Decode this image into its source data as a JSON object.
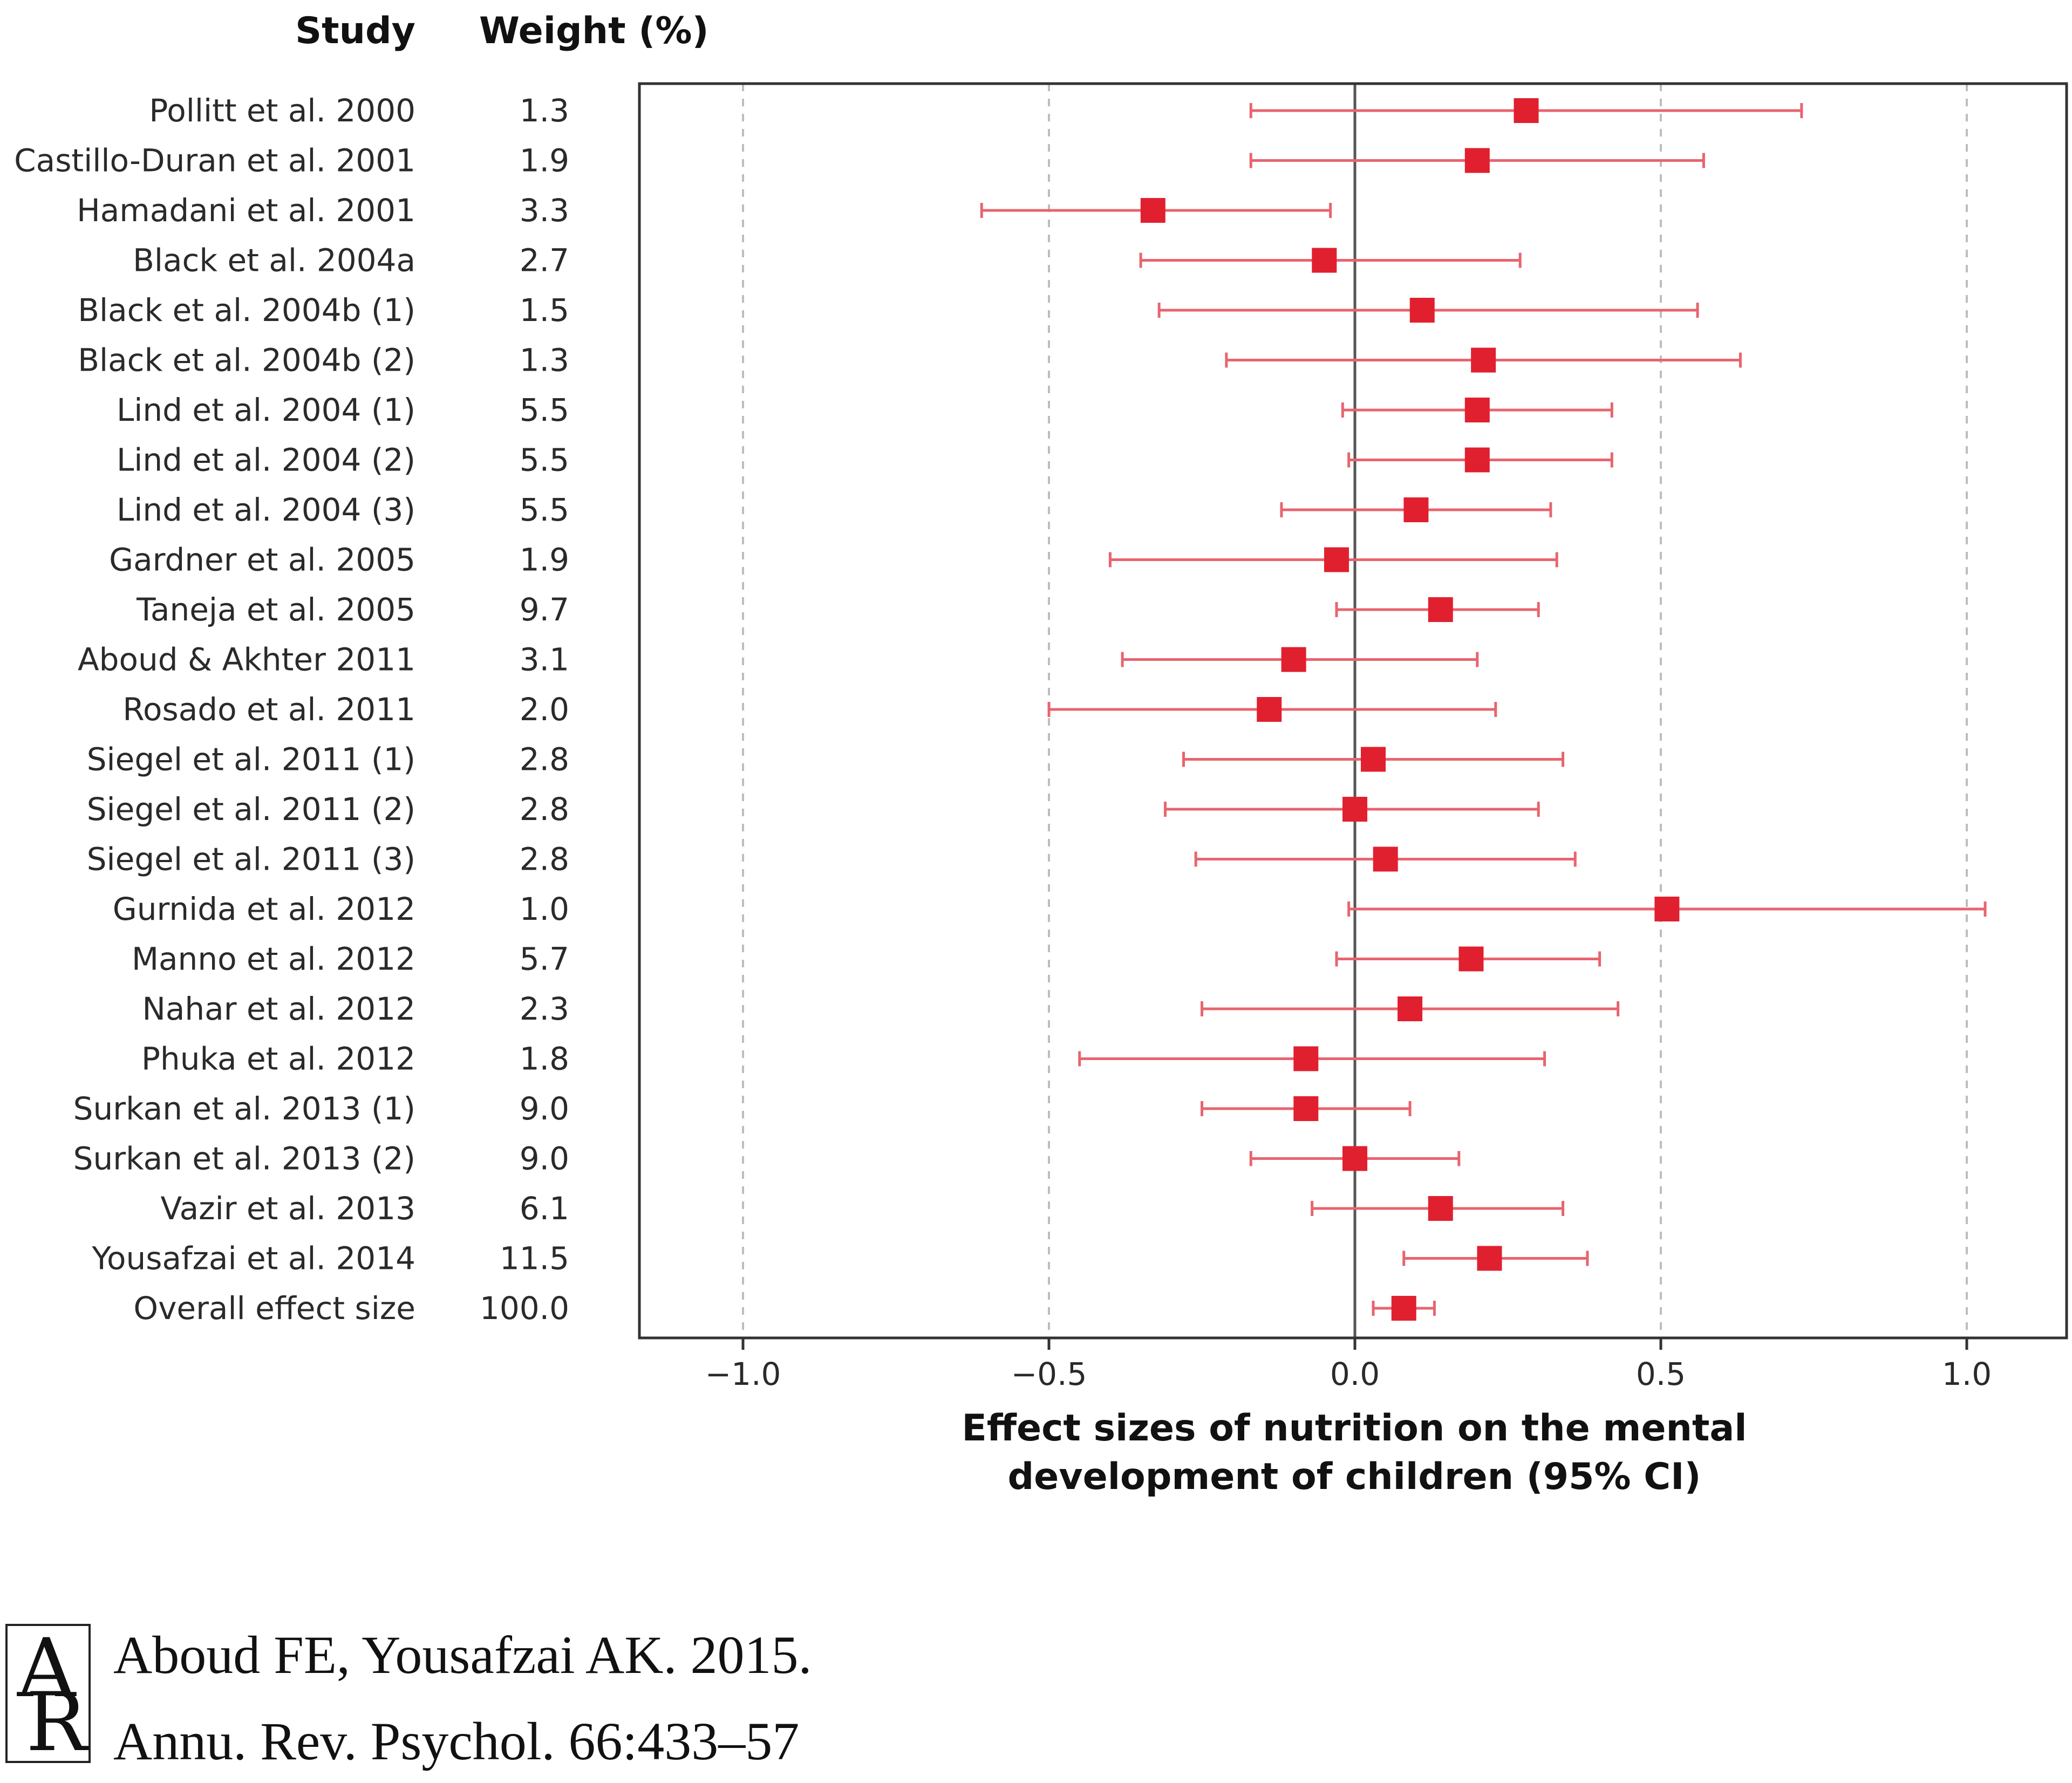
{
  "header": {
    "study_label": "Study",
    "weight_label": "Weight (%)"
  },
  "chart_data": {
    "type": "forest",
    "xlabel_lines": [
      "Effect sizes of nutrition on the mental",
      "development of children (95% CI)"
    ],
    "xlim": [
      -1.17,
      1.17
    ],
    "xticks": [
      -1.0,
      -0.5,
      0.0,
      0.5,
      1.0
    ],
    "xtick_labels": [
      "−1.0",
      "−0.5",
      "0.0",
      "0.5",
      "1.0"
    ],
    "reference_line": 0.0,
    "grid": "vertical-dashed",
    "marker_color": "#e0202f",
    "ci_color": "#e8646e",
    "studies": [
      {
        "name": "Pollitt et al. 2000",
        "weight": "1.3",
        "es": 0.28,
        "lo": -0.17,
        "hi": 0.73
      },
      {
        "name": "Castillo-Duran et al. 2001",
        "weight": "1.9",
        "es": 0.2,
        "lo": -0.17,
        "hi": 0.57
      },
      {
        "name": "Hamadani et al. 2001",
        "weight": "3.3",
        "es": -0.33,
        "lo": -0.61,
        "hi": -0.04
      },
      {
        "name": "Black et al. 2004a",
        "weight": "2.7",
        "es": -0.05,
        "lo": -0.35,
        "hi": 0.27
      },
      {
        "name": "Black et al. 2004b (1)",
        "weight": "1.5",
        "es": 0.11,
        "lo": -0.32,
        "hi": 0.56
      },
      {
        "name": "Black et al. 2004b (2)",
        "weight": "1.3",
        "es": 0.21,
        "lo": -0.21,
        "hi": 0.63
      },
      {
        "name": "Lind et al. 2004 (1)",
        "weight": "5.5",
        "es": 0.2,
        "lo": -0.02,
        "hi": 0.42
      },
      {
        "name": "Lind et al. 2004 (2)",
        "weight": "5.5",
        "es": 0.2,
        "lo": -0.01,
        "hi": 0.42
      },
      {
        "name": "Lind et al. 2004 (3)",
        "weight": "5.5",
        "es": 0.1,
        "lo": -0.12,
        "hi": 0.32
      },
      {
        "name": "Gardner et al. 2005",
        "weight": "1.9",
        "es": -0.03,
        "lo": -0.4,
        "hi": 0.33
      },
      {
        "name": "Taneja et al. 2005",
        "weight": "9.7",
        "es": 0.14,
        "lo": -0.03,
        "hi": 0.3
      },
      {
        "name": "Aboud & Akhter 2011",
        "weight": "3.1",
        "es": -0.1,
        "lo": -0.38,
        "hi": 0.2
      },
      {
        "name": "Rosado et al. 2011",
        "weight": "2.0",
        "es": -0.14,
        "lo": -0.5,
        "hi": 0.23
      },
      {
        "name": "Siegel et al. 2011 (1)",
        "weight": "2.8",
        "es": 0.03,
        "lo": -0.28,
        "hi": 0.34
      },
      {
        "name": "Siegel et al. 2011 (2)",
        "weight": "2.8",
        "es": 0.0,
        "lo": -0.31,
        "hi": 0.3
      },
      {
        "name": "Siegel et al. 2011 (3)",
        "weight": "2.8",
        "es": 0.05,
        "lo": -0.26,
        "hi": 0.36
      },
      {
        "name": "Gurnida et al. 2012",
        "weight": "1.0",
        "es": 0.51,
        "lo": -0.01,
        "hi": 1.03
      },
      {
        "name": "Manno et al. 2012",
        "weight": "5.7",
        "es": 0.19,
        "lo": -0.03,
        "hi": 0.4
      },
      {
        "name": "Nahar et al. 2012",
        "weight": "2.3",
        "es": 0.09,
        "lo": -0.25,
        "hi": 0.43
      },
      {
        "name": "Phuka et al. 2012",
        "weight": "1.8",
        "es": -0.08,
        "lo": -0.45,
        "hi": 0.31
      },
      {
        "name": "Surkan et al. 2013 (1)",
        "weight": "9.0",
        "es": -0.08,
        "lo": -0.25,
        "hi": 0.09
      },
      {
        "name": "Surkan et al. 2013 (2)",
        "weight": "9.0",
        "es": 0.0,
        "lo": -0.17,
        "hi": 0.17
      },
      {
        "name": "Vazir et al. 2013",
        "weight": "6.1",
        "es": 0.14,
        "lo": -0.07,
        "hi": 0.34
      },
      {
        "name": "Yousafzai et al. 2014",
        "weight": "11.5",
        "es": 0.22,
        "lo": 0.08,
        "hi": 0.38
      },
      {
        "name": "Overall effect size",
        "weight": "100.0",
        "es": 0.08,
        "lo": 0.03,
        "hi": 0.13
      }
    ]
  },
  "citation": {
    "logo_letters": "AR",
    "line1": "Aboud FE, Yousafzai AK. 2015.",
    "line2": "Annu. Rev. Psychol. 66:433–57"
  }
}
